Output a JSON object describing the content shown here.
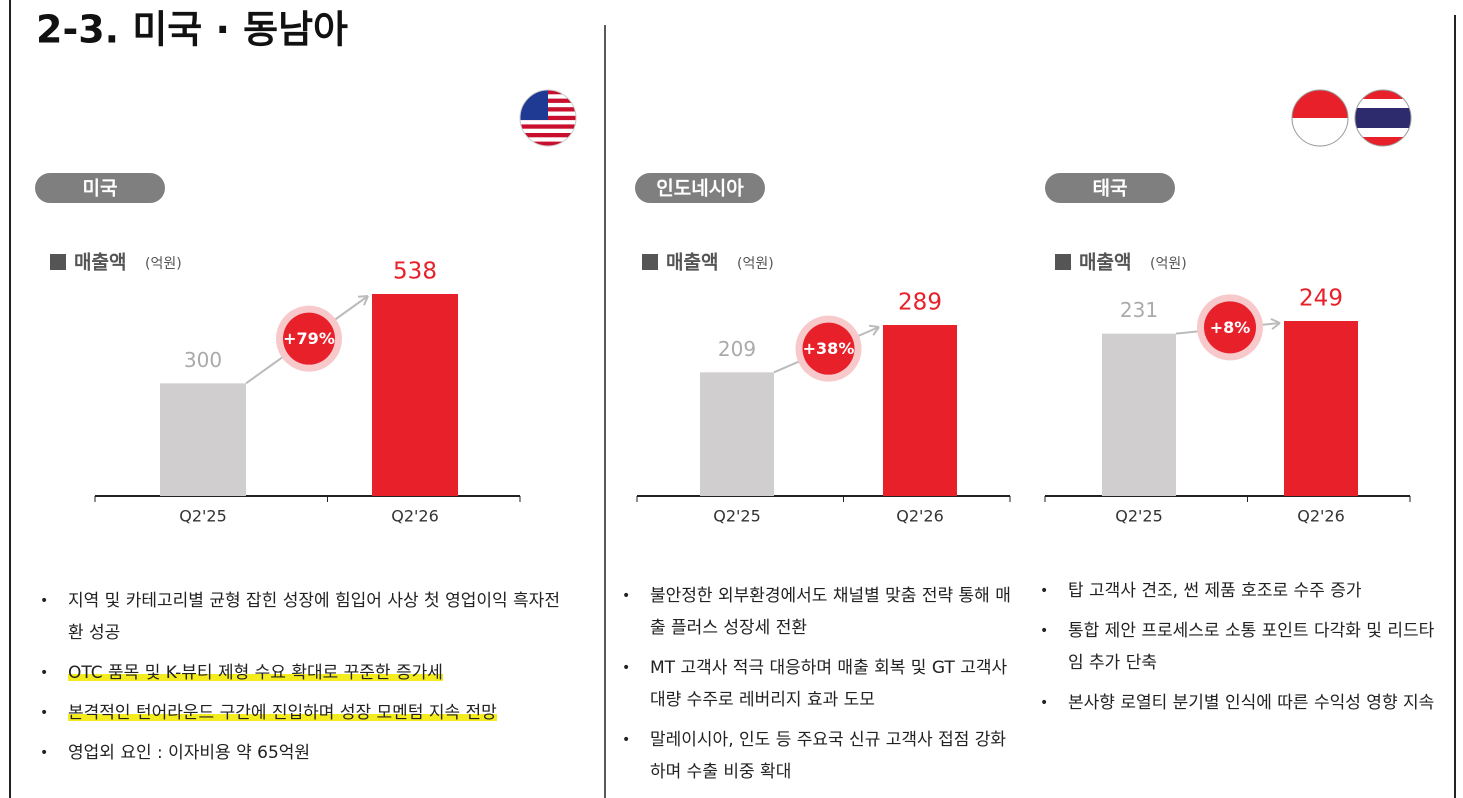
{
  "title": "2-3. 미국 · 동남아",
  "chart_data": [
    {
      "type": "bar",
      "section": "미국",
      "title": "매출액",
      "unit": "(억원)",
      "categories": [
        "Q2'25",
        "Q2'26"
      ],
      "values": [
        300,
        538
      ],
      "colors": [
        "#d0cece",
        "#e8202a"
      ],
      "growth_label": "+79%",
      "bullets": [
        "지역 및 카테고리별 균형 잡힌 성장에 힘입어 사상 첫 영업이익 흑자전환 성공",
        "OTC 품목 및 K-뷰티 제형 수요 확대로 꾸준한 증가세",
        "본격적인 턴어라운드 구간에 진입하며 성장 모멘텀 지속 전망",
        "영업외 요인 : 이자비용 약 65억원"
      ]
    },
    {
      "type": "bar",
      "section": "인도네시아",
      "title": "매출액",
      "unit": "(억원)",
      "categories": [
        "Q2'25",
        "Q2'26"
      ],
      "values": [
        209,
        289
      ],
      "colors": [
        "#d0cece",
        "#e8202a"
      ],
      "growth_label": "+38%",
      "bullets": [
        "불안정한 외부환경에서도 채널별 맞춤 전략 통해 매출 플러스 성장세 전환",
        "MT 고객사 적극 대응하며 매출 회복 및 GT 고객사 대량 수주로 레버리지 효과 도모",
        "말레이시아, 인도 등 주요국 신규 고객사 접점 강화하며 수출 비중 확대"
      ]
    },
    {
      "type": "bar",
      "section": "태국",
      "title": "매출액",
      "unit": "(억원)",
      "categories": [
        "Q2'25",
        "Q2'26"
      ],
      "values": [
        231,
        249
      ],
      "colors": [
        "#d0cece",
        "#e8202a"
      ],
      "growth_label": "+8%",
      "bullets": [
        "탑 고객사 견조, 썬 제품 호조로 수주 증가",
        "통합 제안 프로세스로 소통 포인트 다각화 및 리드타임 추가 단축",
        "본사향 로열티 분기별 인식에 따른 수익성 영향 지속"
      ]
    }
  ]
}
